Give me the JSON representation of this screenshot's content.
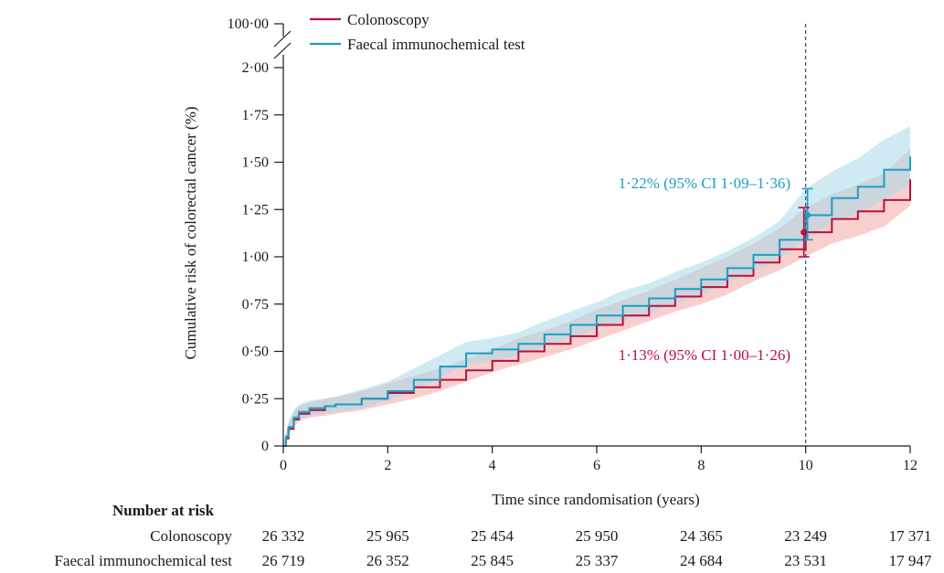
{
  "chart_data": {
    "type": "line",
    "title": "",
    "xlabel": "Time since randomisation (years)",
    "ylabel": "Cumulative risk of colorectal cancer (%)",
    "xlim": [
      0,
      12
    ],
    "ylim": [
      0,
      2.0
    ],
    "x_ticks": [
      "0",
      "2",
      "4",
      "6",
      "8",
      "10",
      "12"
    ],
    "y_ticks": [
      "0",
      "0·25",
      "0·50",
      "0·75",
      "1·00",
      "1·25",
      "1·50",
      "1·75",
      "2·00"
    ],
    "y_break_label": "100·00",
    "legend": [
      "Colonoscopy",
      "Faecal immunochemical test"
    ],
    "reference_line_x": 10,
    "series": [
      {
        "name": "Colonoscopy",
        "color": "#b5123e",
        "band_color": "#f2a7a4",
        "x": [
          0,
          0.05,
          0.1,
          0.2,
          0.3,
          0.5,
          0.8,
          1,
          1.5,
          2,
          2.5,
          3,
          3.5,
          4,
          4.5,
          5,
          5.5,
          6,
          6.5,
          7,
          7.5,
          8,
          8.5,
          9,
          9.5,
          10,
          10.5,
          11,
          11.5,
          12
        ],
        "y": [
          0,
          0.04,
          0.09,
          0.14,
          0.17,
          0.19,
          0.21,
          0.22,
          0.25,
          0.28,
          0.31,
          0.35,
          0.4,
          0.45,
          0.5,
          0.54,
          0.58,
          0.64,
          0.69,
          0.74,
          0.79,
          0.84,
          0.9,
          0.97,
          1.04,
          1.13,
          1.2,
          1.24,
          1.3,
          1.41
        ],
        "lower": [
          0,
          0.02,
          0.06,
          0.1,
          0.13,
          0.15,
          0.16,
          0.17,
          0.19,
          0.22,
          0.25,
          0.29,
          0.34,
          0.39,
          0.43,
          0.47,
          0.51,
          0.56,
          0.61,
          0.66,
          0.71,
          0.75,
          0.8,
          0.87,
          0.93,
          1.0,
          1.07,
          1.11,
          1.16,
          1.27
        ],
        "upper": [
          0,
          0.06,
          0.12,
          0.18,
          0.21,
          0.23,
          0.25,
          0.26,
          0.29,
          0.33,
          0.37,
          0.41,
          0.46,
          0.51,
          0.57,
          0.61,
          0.66,
          0.72,
          0.77,
          0.82,
          0.88,
          0.94,
          1.0,
          1.07,
          1.15,
          1.26,
          1.33,
          1.38,
          1.44,
          1.57
        ]
      },
      {
        "name": "Faecal immunochemical test",
        "color": "#1b9fc3",
        "band_color": "#a8d8ea",
        "x": [
          0,
          0.05,
          0.1,
          0.2,
          0.3,
          0.5,
          0.8,
          1,
          1.5,
          2,
          2.5,
          3,
          3.5,
          4,
          4.5,
          5,
          5.5,
          6,
          6.5,
          7,
          7.5,
          8,
          8.5,
          9,
          9.5,
          10,
          10.5,
          11,
          11.5,
          12
        ],
        "y": [
          0,
          0.05,
          0.1,
          0.15,
          0.18,
          0.2,
          0.21,
          0.22,
          0.25,
          0.29,
          0.35,
          0.42,
          0.49,
          0.51,
          0.54,
          0.59,
          0.64,
          0.69,
          0.74,
          0.78,
          0.83,
          0.88,
          0.94,
          1.01,
          1.09,
          1.22,
          1.31,
          1.37,
          1.46,
          1.53
        ],
        "lower": [
          0,
          0.03,
          0.07,
          0.11,
          0.14,
          0.16,
          0.17,
          0.18,
          0.2,
          0.24,
          0.29,
          0.36,
          0.43,
          0.45,
          0.48,
          0.52,
          0.57,
          0.62,
          0.66,
          0.7,
          0.75,
          0.8,
          0.86,
          0.92,
          0.99,
          1.09,
          1.18,
          1.23,
          1.3,
          1.38
        ],
        "upper": [
          0,
          0.07,
          0.13,
          0.19,
          0.22,
          0.24,
          0.25,
          0.26,
          0.3,
          0.34,
          0.41,
          0.48,
          0.55,
          0.57,
          0.6,
          0.66,
          0.71,
          0.76,
          0.82,
          0.86,
          0.92,
          0.97,
          1.03,
          1.1,
          1.19,
          1.36,
          1.45,
          1.52,
          1.62,
          1.69
        ]
      }
    ],
    "annotations": [
      {
        "text": "1·22% (95% CI 1·09–1·36)",
        "series": "Faecal immunochemical test",
        "x": 10,
        "estimate": 1.22,
        "ci": [
          1.09,
          1.36
        ]
      },
      {
        "text": "1·13% (95% CI 1·00–1·26)",
        "series": "Colonoscopy",
        "x": 10,
        "estimate": 1.13,
        "ci": [
          1.0,
          1.26
        ]
      }
    ]
  },
  "number_at_risk": {
    "title": "Number at risk",
    "rows": [
      {
        "label": "Colonoscopy",
        "values": [
          "26 332",
          "25 965",
          "25 454",
          "25 950",
          "24 365",
          "23 249",
          "17 371"
        ]
      },
      {
        "label": "Faecal immunochemical test",
        "values": [
          "26 719",
          "26 352",
          "25 845",
          "25 337",
          "24 684",
          "23 531",
          "17 947"
        ]
      }
    ]
  }
}
